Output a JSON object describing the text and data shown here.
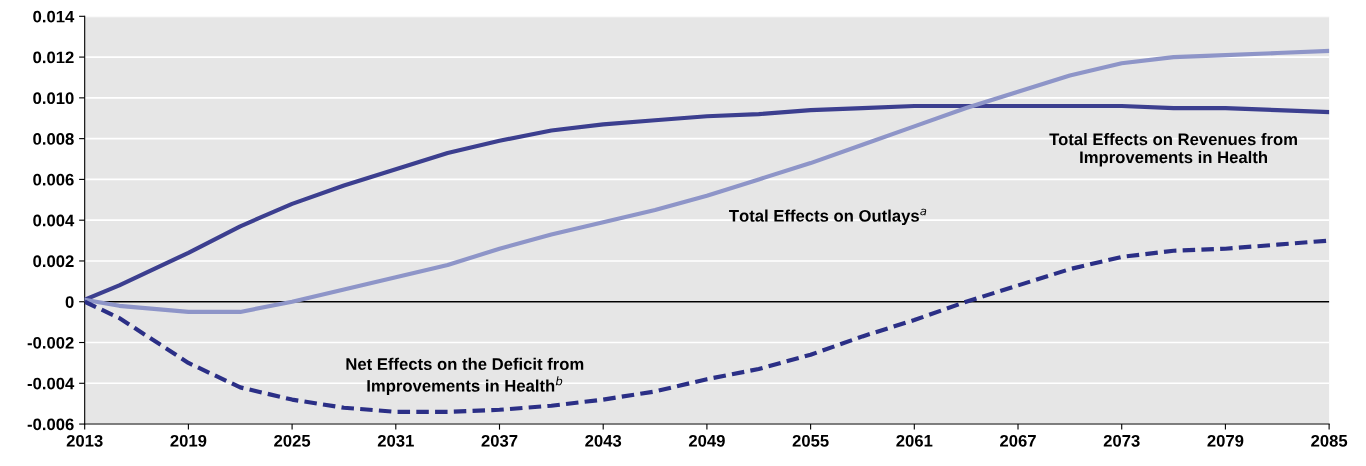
{
  "chart_data": {
    "type": "line",
    "x": [
      2013,
      2015,
      2019,
      2022,
      2025,
      2028,
      2031,
      2034,
      2037,
      2040,
      2043,
      2046,
      2049,
      2052,
      2055,
      2058,
      2061,
      2064,
      2067,
      2070,
      2073,
      2076,
      2079,
      2082,
      2085
    ],
    "series": [
      {
        "name": "Total Effects on Revenues from\nImprovements in Health",
        "color": "#3c3f8f",
        "line_style": "solid",
        "values": [
          0.0001,
          0.0008,
          0.0024,
          0.0037,
          0.0048,
          0.0057,
          0.0065,
          0.0073,
          0.0079,
          0.0084,
          0.0087,
          0.0089,
          0.0091,
          0.0092,
          0.0094,
          0.0095,
          0.0096,
          0.0096,
          0.0096,
          0.0096,
          0.0096,
          0.0095,
          0.0095,
          0.0094,
          0.0093
        ]
      },
      {
        "name": "Total Effects on Outlays$^{a}$",
        "color": "#8e95c8",
        "line_style": "solid",
        "values": [
          0.0001,
          -0.0002,
          -0.0005,
          -0.0005,
          0.0,
          0.0006,
          0.0012,
          0.0018,
          0.0026,
          0.0033,
          0.0039,
          0.0045,
          0.0052,
          0.006,
          0.0068,
          0.0077,
          0.0086,
          0.0095,
          0.0103,
          0.0111,
          0.0117,
          0.012,
          0.0121,
          0.0122,
          0.0123
        ]
      },
      {
        "name": "Net Effects on the Deficit from\nImprovements in Health$^{b}$",
        "color": "#2b2f86",
        "line_style": "dashed",
        "values": [
          0.0,
          -0.0008,
          -0.003,
          -0.0042,
          -0.0048,
          -0.0052,
          -0.0054,
          -0.0054,
          -0.0053,
          -0.0051,
          -0.0048,
          -0.0044,
          -0.0038,
          -0.0033,
          -0.0026,
          -0.0017,
          -0.0009,
          0.0,
          0.0008,
          0.0016,
          0.0022,
          0.0025,
          0.0026,
          0.0028,
          0.003
        ]
      }
    ],
    "xlim": [
      2013,
      2085
    ],
    "xticks": [
      2013,
      2019,
      2025,
      2031,
      2037,
      2043,
      2049,
      2055,
      2061,
      2067,
      2073,
      2079,
      2085
    ],
    "ylim": [
      -0.006,
      0.014
    ],
    "yticks": [
      {
        "value": -0.006,
        "label": "-0.006"
      },
      {
        "value": -0.004,
        "label": "-0.004"
      },
      {
        "value": -0.002,
        "label": "-0.002"
      },
      {
        "value": 0,
        "label": "0"
      },
      {
        "value": 0.002,
        "label": "0.002"
      },
      {
        "value": 0.004,
        "label": "0.004"
      },
      {
        "value": 0.006,
        "label": "0.006"
      },
      {
        "value": 0.008,
        "label": "0.008"
      },
      {
        "value": 0.01,
        "label": "0.010"
      },
      {
        "value": 0.012,
        "label": "0.012"
      },
      {
        "value": 0.014,
        "label": "0.014"
      }
    ],
    "ref_lines": [
      {
        "axis": "y",
        "value": 0,
        "color": "#000000"
      }
    ],
    "grid": "y",
    "legend": false,
    "marker": "none"
  }
}
